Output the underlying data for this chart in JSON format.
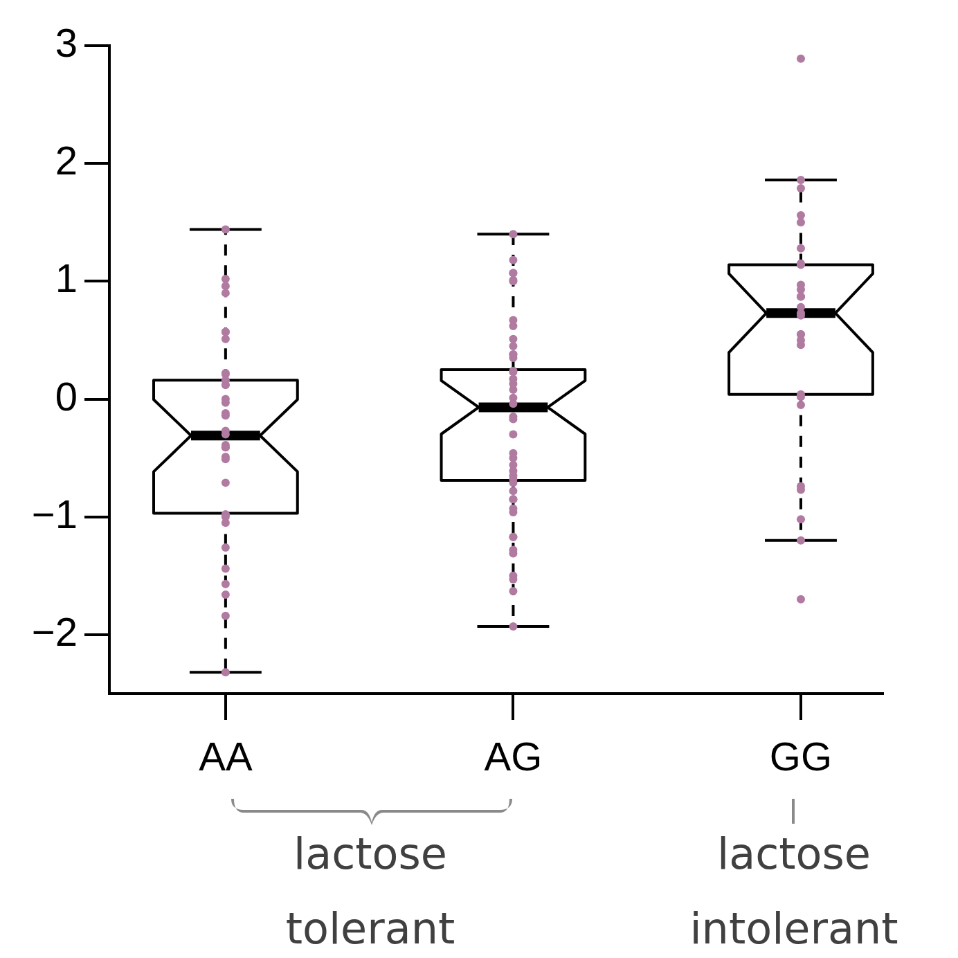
{
  "chart_data": {
    "type": "box",
    "categories": [
      "AA",
      "AG",
      "GG"
    ],
    "boxes": [
      {
        "low": -2.32,
        "q1": -0.97,
        "median": -0.31,
        "q3": 0.16,
        "high": 1.44
      },
      {
        "low": -1.93,
        "q1": -0.69,
        "median": -0.07,
        "q3": 0.25,
        "high": 1.4
      },
      {
        "low": -1.2,
        "q1": 0.04,
        "median": 0.73,
        "q3": 1.14,
        "high": 1.86
      }
    ],
    "color": "#000000",
    "ylim": [
      -2.5,
      3
    ],
    "yticks": [
      {
        "value": -2,
        "label": "−2"
      },
      {
        "value": -1,
        "label": "−1"
      },
      0,
      1,
      2,
      3
    ],
    "grid": false,
    "legend": false,
    "series": [
      {
        "type": "scatter",
        "marker": "circle",
        "color": "#b07aa1",
        "x": [
          "AA",
          "AA",
          "AA",
          "AA",
          "AA",
          "AA",
          "AA",
          "AA",
          "AA",
          "AA",
          "AA",
          "AA",
          "AA",
          "AA",
          "AA",
          "AA",
          "AA",
          "AA",
          "AA",
          "AA",
          "AA",
          "AA",
          "AA",
          "AA",
          "AA",
          "AA",
          "AA",
          "AA",
          "AA",
          "AA",
          "AA",
          "AA",
          "AA",
          "AA",
          "AG",
          "AG",
          "AG",
          "AG",
          "AG",
          "AG",
          "AG",
          "AG",
          "AG",
          "AG",
          "AG",
          "AG",
          "AG",
          "AG",
          "AG",
          "AG",
          "AG",
          "AG",
          "AG",
          "AG",
          "AG",
          "AG",
          "AG",
          "AG",
          "AG",
          "AG",
          "AG",
          "AG",
          "AG",
          "AG",
          "AG",
          "AG",
          "AG",
          "AG",
          "AG",
          "AG",
          "AG",
          "AG",
          "AG",
          "AG",
          "AG",
          "AG",
          "AG",
          "GG",
          "GG",
          "GG",
          "GG",
          "GG",
          "GG",
          "GG",
          "GG",
          "GG",
          "GG",
          "GG",
          "GG",
          "GG",
          "GG",
          "GG",
          "GG",
          "GG",
          "GG",
          "GG",
          "GG",
          "GG",
          "GG",
          "GG",
          "GG",
          "GG",
          "GG",
          "GG"
        ],
        "values": [
          1.44,
          1.02,
          0.96,
          0.9,
          0.57,
          0.57,
          0.51,
          0.22,
          0.21,
          0.16,
          0.12,
          0.12,
          0.0,
          -0.03,
          -0.12,
          -0.14,
          -0.27,
          -0.3,
          -0.39,
          -0.41,
          -0.41,
          -0.49,
          -0.51,
          -0.71,
          -0.98,
          -0.98,
          -1.0,
          -1.05,
          -1.26,
          -1.44,
          -1.57,
          -1.66,
          -1.84,
          -2.32,
          1.4,
          1.18,
          1.07,
          1.07,
          1.01,
          1.0,
          0.67,
          0.62,
          0.51,
          0.45,
          0.38,
          0.38,
          0.35,
          0.24,
          0.23,
          0.17,
          0.13,
          0.08,
          0.01,
          -0.04,
          -0.15,
          -0.17,
          -0.3,
          -0.46,
          -0.5,
          -0.56,
          -0.61,
          -0.65,
          -0.68,
          -0.71,
          -0.78,
          -0.85,
          -0.85,
          -0.93,
          -0.96,
          -1.17,
          -1.17,
          -1.28,
          -1.31,
          -1.5,
          -1.53,
          -1.63,
          -1.93,
          2.89,
          1.86,
          1.79,
          1.56,
          1.5,
          1.28,
          1.15,
          1.14,
          0.97,
          0.93,
          0.87,
          0.87,
          0.78,
          0.73,
          0.71,
          0.55,
          0.55,
          0.5,
          0.46,
          0.04,
          0.02,
          -0.05,
          -0.74,
          -0.77,
          -1.02,
          -1.2,
          -1.7
        ]
      }
    ],
    "annotations": [
      "lactose tolerant",
      "lactose intolerant"
    ]
  }
}
